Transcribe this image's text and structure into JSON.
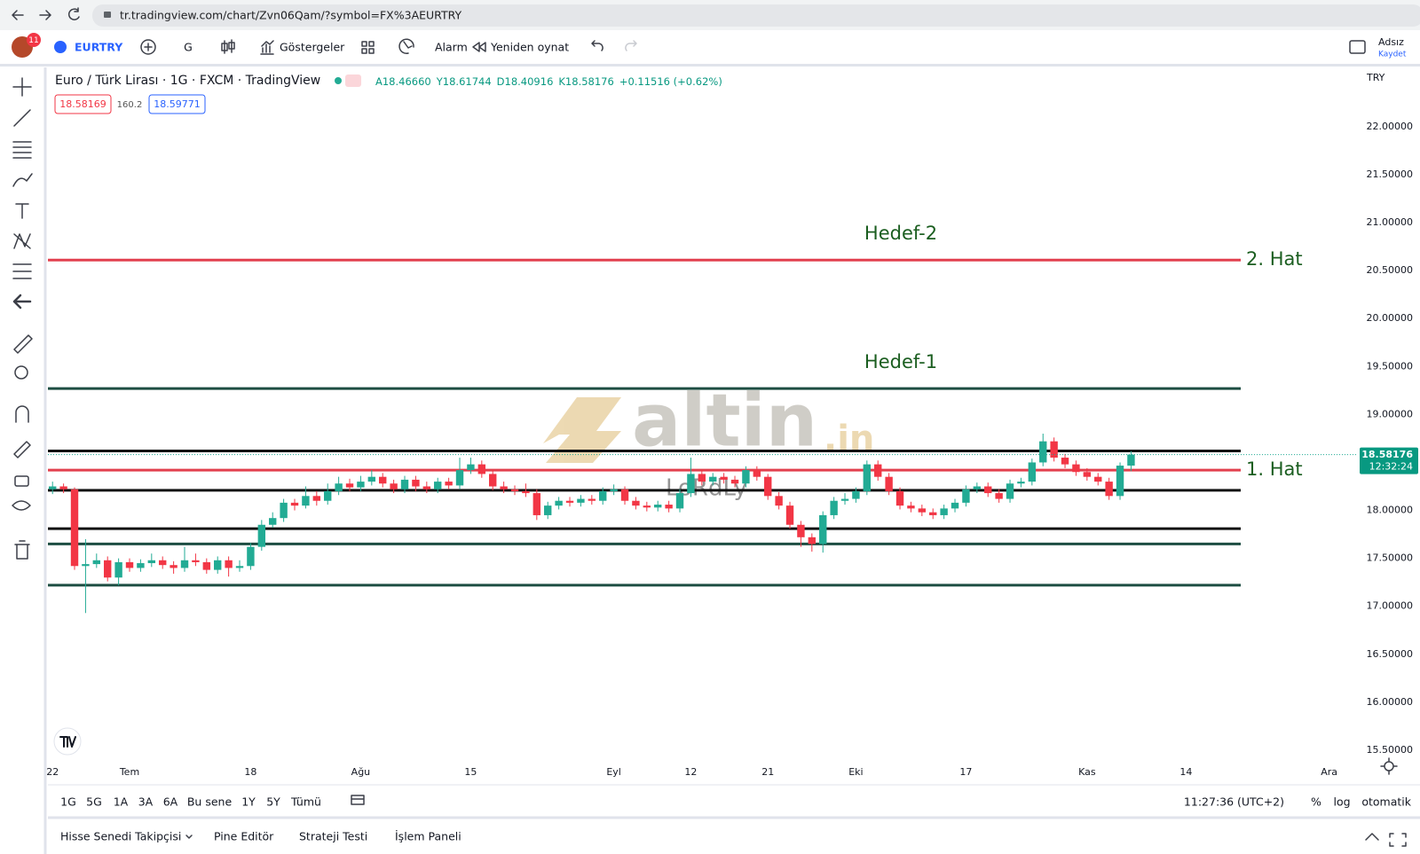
{
  "browser": {
    "url": "tr.tradingview.com/chart/Zvn06Qam/?symbol=FX%3AEURTRY"
  },
  "toolbar": {
    "badge": "11",
    "symbol": "EURTRY",
    "interval": "G",
    "indicators": "Göstergeler",
    "alert": "Alarm",
    "replay": "Yeniden oynat",
    "layout_name": "Adsız",
    "save": "Kaydet"
  },
  "legend": {
    "title": "Euro / Türk Lirası · 1G · FXCM · TradingView",
    "ohlc": [
      "A18.46660",
      "Y18.61744",
      "D18.40916",
      "K18.58176"
    ],
    "change": "+0.11516 (+0.62%)",
    "sell": "18.58169",
    "spread": 160.2,
    "buy": "18.59771"
  },
  "currency": "TRY",
  "watermark": {
    "brand": "altin",
    "suffix": ".in",
    "author": "LoRdLy"
  },
  "chart_data": {
    "type": "candlestick",
    "up_color": "#22ab94",
    "down_color": "#f23645",
    "open": [
      18.22,
      18.25,
      18.22,
      17.42,
      17.44,
      17.48,
      17.3,
      17.46,
      17.4,
      17.45,
      17.48,
      17.43,
      17.4,
      17.48,
      17.46,
      17.38,
      17.48,
      17.4,
      17.42,
      17.62,
      17.85,
      17.92,
      18.08,
      18.05,
      18.15,
      18.1,
      18.2,
      18.28,
      18.24,
      18.3,
      18.35,
      18.28,
      18.22,
      18.32,
      18.25,
      18.22,
      18.3,
      18.26,
      18.42,
      18.48,
      18.38,
      18.25,
      18.22,
      18.2,
      18.18,
      17.95,
      18.05,
      18.1,
      18.08,
      18.12,
      18.1,
      18.2,
      18.22,
      18.1,
      18.05,
      18.03,
      18.06,
      18.02,
      18.18,
      18.38,
      18.3,
      18.35,
      18.32,
      18.28,
      18.42,
      18.35,
      18.15,
      18.05,
      17.85,
      17.72,
      17.65,
      17.95,
      18.1,
      18.12,
      18.2,
      18.48,
      18.35,
      18.2,
      18.05,
      18.02,
      17.98,
      17.95,
      18.02,
      18.08,
      18.22,
      18.25,
      18.18,
      18.12,
      18.28,
      18.3,
      18.5,
      18.72,
      18.55,
      18.48,
      18.4,
      18.35,
      18.3,
      18.15,
      18.4666
    ],
    "high": [
      18.3,
      18.28,
      18.24,
      17.7,
      17.55,
      17.52,
      17.5,
      17.5,
      17.49,
      17.55,
      17.52,
      17.47,
      17.62,
      17.55,
      17.5,
      17.52,
      17.52,
      17.48,
      17.66,
      17.9,
      17.98,
      18.12,
      18.12,
      18.25,
      18.2,
      18.28,
      18.35,
      18.33,
      18.36,
      18.42,
      18.39,
      18.32,
      18.36,
      18.36,
      18.3,
      18.34,
      18.34,
      18.55,
      18.55,
      18.52,
      18.42,
      18.3,
      18.26,
      18.28,
      18.22,
      18.09,
      18.14,
      18.14,
      18.16,
      18.16,
      18.24,
      18.27,
      18.25,
      18.14,
      18.09,
      18.1,
      18.1,
      18.22,
      18.55,
      18.42,
      18.39,
      18.39,
      18.36,
      18.46,
      18.46,
      18.38,
      18.19,
      18.09,
      17.89,
      17.76,
      17.99,
      18.14,
      18.18,
      18.24,
      18.52,
      18.52,
      18.39,
      18.24,
      18.09,
      18.06,
      18.02,
      18.06,
      18.12,
      18.26,
      18.29,
      18.29,
      18.22,
      18.32,
      18.34,
      18.54,
      18.8,
      18.76,
      18.59,
      18.52,
      18.44,
      18.39,
      18.34,
      18.5,
      18.61744
    ],
    "low": [
      18.17,
      18.18,
      17.38,
      16.93,
      17.4,
      17.26,
      17.22,
      17.36,
      17.36,
      17.41,
      17.39,
      17.34,
      17.36,
      17.42,
      17.34,
      17.34,
      17.31,
      17.36,
      17.38,
      17.58,
      17.82,
      17.88,
      18.0,
      18.02,
      18.05,
      18.06,
      18.16,
      18.2,
      18.2,
      18.26,
      18.24,
      18.18,
      18.18,
      18.2,
      18.18,
      18.18,
      18.22,
      18.22,
      18.38,
      18.34,
      18.21,
      18.18,
      18.16,
      18.14,
      17.9,
      17.91,
      18.01,
      18.04,
      18.04,
      18.06,
      18.06,
      18.16,
      18.06,
      18.01,
      17.99,
      17.99,
      17.98,
      17.98,
      18.14,
      18.26,
      18.26,
      18.28,
      18.24,
      18.24,
      18.31,
      18.11,
      18.01,
      17.81,
      17.62,
      17.57,
      17.56,
      17.91,
      18.06,
      18.08,
      18.16,
      18.31,
      18.16,
      18.01,
      17.98,
      17.94,
      17.91,
      17.91,
      17.98,
      18.04,
      18.18,
      18.14,
      18.08,
      18.08,
      18.24,
      18.26,
      18.46,
      18.51,
      18.44,
      18.36,
      18.31,
      18.26,
      18.11,
      18.11,
      18.40916
    ],
    "close": [
      18.25,
      18.22,
      17.42,
      17.44,
      17.48,
      17.3,
      17.46,
      17.4,
      17.45,
      17.48,
      17.43,
      17.4,
      17.48,
      17.46,
      17.38,
      17.48,
      17.4,
      17.42,
      17.62,
      17.85,
      17.92,
      18.08,
      18.05,
      18.15,
      18.1,
      18.2,
      18.28,
      18.24,
      18.3,
      18.35,
      18.28,
      18.22,
      18.32,
      18.25,
      18.22,
      18.3,
      18.26,
      18.42,
      18.48,
      18.38,
      18.25,
      18.22,
      18.2,
      18.18,
      17.95,
      18.05,
      18.1,
      18.08,
      18.12,
      18.1,
      18.2,
      18.22,
      18.1,
      18.05,
      18.03,
      18.06,
      18.02,
      18.18,
      18.38,
      18.3,
      18.35,
      18.32,
      18.28,
      18.42,
      18.35,
      18.15,
      18.05,
      17.85,
      17.72,
      17.65,
      17.95,
      18.1,
      18.12,
      18.2,
      18.48,
      18.35,
      18.2,
      18.05,
      18.02,
      17.98,
      17.95,
      18.02,
      18.08,
      18.22,
      18.25,
      18.18,
      18.12,
      18.28,
      18.3,
      18.5,
      18.72,
      18.55,
      18.48,
      18.4,
      18.35,
      18.3,
      18.15,
      18.4666,
      18.58176
    ],
    "xlim": [
      -0.42,
      118.61
    ],
    "xticks": [
      {
        "value": 0,
        "label": "22"
      },
      {
        "value": 7,
        "label": "Tem"
      },
      {
        "value": 18,
        "label": "18"
      },
      {
        "value": 28,
        "label": "Ağu"
      },
      {
        "value": 38,
        "label": "15"
      },
      {
        "value": 51,
        "label": "Eyl"
      },
      {
        "value": 58,
        "label": "12"
      },
      {
        "value": 65,
        "label": "21"
      },
      {
        "value": 73,
        "label": "Eki"
      },
      {
        "value": 83,
        "label": "17"
      },
      {
        "value": 94,
        "label": "Kas"
      },
      {
        "value": 103,
        "label": "14"
      },
      {
        "value": 116,
        "label": "Ara"
      }
    ],
    "ylim": [
      15.37,
      22.6
    ],
    "yticks": [
      {
        "value": 22,
        "label": "22.00000"
      },
      {
        "value": 21.5,
        "label": "21.50000"
      },
      {
        "value": 21,
        "label": "21.00000"
      },
      {
        "value": 20.5,
        "label": "20.50000"
      },
      {
        "value": 20,
        "label": "20.00000"
      },
      {
        "value": 19.5,
        "label": "19.50000"
      },
      {
        "value": 19,
        "label": "19.00000"
      },
      {
        "value": 18.5,
        "label": "18.50000"
      },
      {
        "value": 18,
        "label": "18.00000"
      },
      {
        "value": 17.5,
        "label": "17.50000"
      },
      {
        "value": 17,
        "label": "17.00000"
      },
      {
        "value": 16.5,
        "label": "16.50000"
      },
      {
        "value": 16,
        "label": "16.00000"
      },
      {
        "value": 15.5,
        "label": "15.50000"
      }
    ],
    "grid": false,
    "levels": [
      {
        "value": 20.61,
        "color": "#e2404e",
        "label": "2. Hat",
        "target": "Hedef-2"
      },
      {
        "value": 19.27,
        "color": "#1d4d42",
        "target": "Hedef-1"
      },
      {
        "value": 18.62,
        "color": "#111111"
      },
      {
        "value": 18.42,
        "color": "#e2404e",
        "label": "1. Hat"
      },
      {
        "value": 18.21,
        "color": "#111111"
      },
      {
        "value": 17.81,
        "color": "#111111"
      },
      {
        "value": 17.65,
        "color": "#1d4d42"
      },
      {
        "value": 17.22,
        "color": "#1d4d42"
      }
    ],
    "last_price_countdown": "12:32:24"
  },
  "bottom_bar": {
    "ranges": [
      "1G",
      "5G",
      "1A",
      "3A",
      "6A",
      "Bu sene",
      "1Y",
      "5Y",
      "Tümü"
    ],
    "clock": "11:27:36 (UTC+2)",
    "percent": "%",
    "log": "log",
    "auto": "otomatik"
  },
  "tabs": [
    "Hisse Senedi Takipçisi",
    "Pine Editör",
    "Strateji Testi",
    "İşlem Paneli"
  ]
}
